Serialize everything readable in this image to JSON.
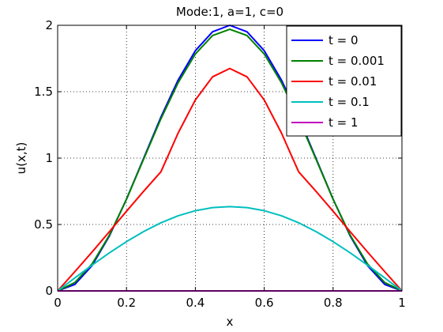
{
  "chart_data": {
    "type": "line",
    "title": "Mode:1, a=1, c=0",
    "xlabel": "x",
    "ylabel": "u(x,t)",
    "xlim": [
      0,
      1
    ],
    "ylim": [
      0,
      2
    ],
    "xticks": [
      "0",
      "0.2",
      "0.4",
      "0.6",
      "0.8",
      "1"
    ],
    "yticks": [
      "0",
      "0.5",
      "1",
      "1.5",
      "2"
    ],
    "grid": true,
    "legend_position": "top-right",
    "x": [
      0,
      0.05,
      0.1,
      0.15,
      0.2,
      0.25,
      0.3,
      0.35,
      0.4,
      0.45,
      0.5,
      0.55,
      0.6,
      0.65,
      0.7,
      0.75,
      0.8,
      0.85,
      0.9,
      0.95,
      1
    ],
    "series": [
      {
        "name": "t = 0",
        "color": "#0000ff",
        "values": [
          0,
          0.049,
          0.191,
          0.412,
          0.691,
          1.0,
          1.309,
          1.588,
          1.809,
          1.951,
          2.0,
          1.951,
          1.809,
          1.588,
          1.309,
          1.0,
          0.691,
          0.412,
          0.191,
          0.049,
          0
        ]
      },
      {
        "name": "t = 0.001",
        "color": "#008000",
        "values": [
          0,
          0.063,
          0.203,
          0.418,
          0.69,
          0.994,
          1.296,
          1.568,
          1.784,
          1.923,
          1.97,
          1.923,
          1.784,
          1.568,
          1.296,
          0.994,
          0.69,
          0.418,
          0.203,
          0.063,
          0
        ]
      },
      {
        "name": "t = 0.01",
        "color": "#ff0000",
        "values": [
          0,
          0.145,
          0.293,
          0.445,
          0.6,
          0.751,
          0.897,
          1.189,
          1.438,
          1.612,
          1.675,
          1.612,
          1.438,
          1.189,
          0.897,
          0.751,
          0.6,
          0.445,
          0.293,
          0.145,
          0
        ]
      },
      {
        "name": "t = 0.1",
        "color": "#00bfbf",
        "values": [
          0,
          0.098,
          0.194,
          0.286,
          0.371,
          0.447,
          0.513,
          0.566,
          0.604,
          0.627,
          0.635,
          0.627,
          0.604,
          0.566,
          0.513,
          0.447,
          0.371,
          0.286,
          0.194,
          0.098,
          0
        ]
      },
      {
        "name": "t = 1",
        "color": "#bf00bf",
        "values": [
          0,
          0,
          0,
          0,
          0,
          0,
          0,
          0,
          0,
          0,
          0,
          0,
          0,
          0,
          0,
          0,
          0,
          0,
          0,
          0,
          0
        ]
      }
    ]
  }
}
